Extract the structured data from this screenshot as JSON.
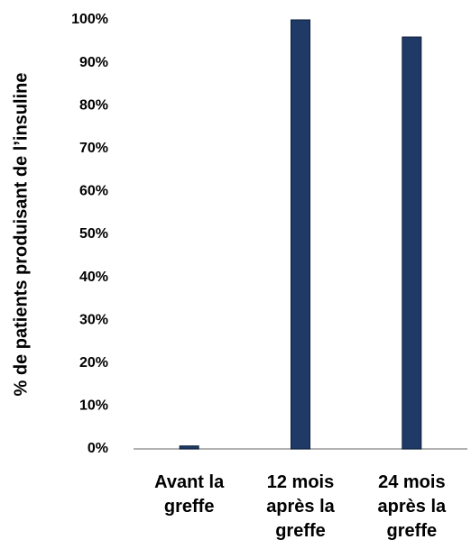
{
  "chart_data": {
    "type": "bar",
    "y_label": "% de patients produisant de l’insuline",
    "categories": [
      "Avant la greffe",
      "12 mois après la greffe",
      "24 mois après la greffe"
    ],
    "values": [
      0.7,
      100,
      96
    ],
    "color": "#1f3a66",
    "ylim": [
      0,
      100
    ],
    "yticks": [
      {
        "value": 0,
        "label": "0%"
      },
      {
        "value": 10,
        "label": "10%"
      },
      {
        "value": 20,
        "label": "20%"
      },
      {
        "value": 30,
        "label": "30%"
      },
      {
        "value": 40,
        "label": "40%"
      },
      {
        "value": 50,
        "label": "50%"
      },
      {
        "value": 60,
        "label": "60%"
      },
      {
        "value": 70,
        "label": "70%"
      },
      {
        "value": 80,
        "label": "80%"
      },
      {
        "value": 90,
        "label": "90%"
      },
      {
        "value": 100,
        "label": "100%"
      }
    ],
    "grid": false
  }
}
